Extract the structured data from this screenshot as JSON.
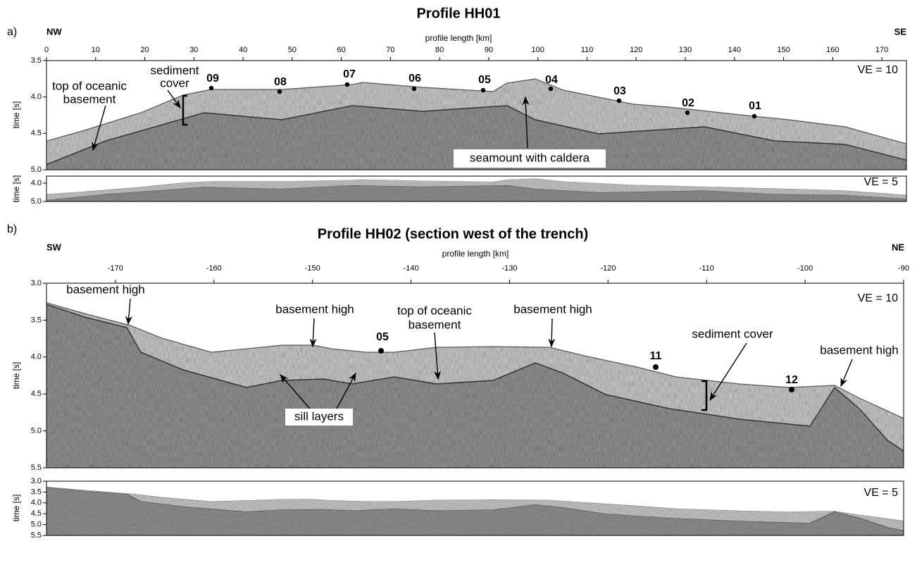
{
  "panel_a": {
    "label": "a)",
    "title": "Profile HH01",
    "left_direction": "NW",
    "right_direction": "SE",
    "x_axis_label": "profile length [km]",
    "y_axis_label": "time [s]",
    "xlim": [
      0,
      175
    ],
    "xticks": [
      0,
      10,
      20,
      30,
      40,
      50,
      60,
      70,
      80,
      90,
      100,
      110,
      120,
      130,
      140,
      150,
      160,
      170
    ],
    "ylim": [
      3.5,
      5.0
    ],
    "yticks": [
      3.5,
      {
        "value": 4,
        "label": "4.0"
      },
      4.5,
      {
        "value": 5,
        "label": "5.0"
      }
    ],
    "ve_label": "VE = 10",
    "annotations": [
      "top of oceanic",
      "basement",
      "sediment",
      "cover",
      "seamount with caldera"
    ],
    "stations": [
      "09",
      "08",
      "07",
      "06",
      "05",
      "04",
      "03",
      "02",
      "01"
    ],
    "inset": {
      "ve_label": "VE = 5",
      "y_axis_label": "time [s]",
      "ylim": [
        3.62,
        5.0
      ],
      "yticks": [
        {
          "value": 4,
          "label": "4.0"
        },
        {
          "value": 5,
          "label": "5.0"
        }
      ]
    }
  },
  "panel_b": {
    "label": "b)",
    "title": "Profile HH02 (section west of the trench)",
    "left_direction": "SW",
    "right_direction": "NE",
    "x_axis_label": "profile length [km]",
    "y_axis_label": "time [s]",
    "xlim": [
      -177,
      -90
    ],
    "xticks": [
      -170,
      -160,
      -150,
      -140,
      -130,
      -120,
      -110,
      -100,
      -90
    ],
    "ylim": [
      3.0,
      5.5
    ],
    "yticks": [
      {
        "value": 3,
        "label": "3.0"
      },
      3.5,
      {
        "value": 4,
        "label": "4.0"
      },
      4.5,
      {
        "value": 5,
        "label": "5.0"
      },
      5.5
    ],
    "ve_label": "VE = 10",
    "annotations": [
      "basement high",
      "basement high",
      "top of oceanic",
      "basement",
      "basement high",
      "sediment cover",
      "basement high",
      "sill layers"
    ],
    "stations": [
      "05",
      "11",
      "12"
    ],
    "inset": {
      "ve_label": "VE = 5",
      "y_axis_label": "time [s]",
      "ylim": [
        3.0,
        5.5
      ],
      "yticks": [
        {
          "value": 3,
          "label": "3.0"
        },
        3.5,
        {
          "value": 4,
          "label": "4.0"
        },
        4.5,
        {
          "value": 5,
          "label": "5.0"
        },
        5.5
      ]
    }
  }
}
